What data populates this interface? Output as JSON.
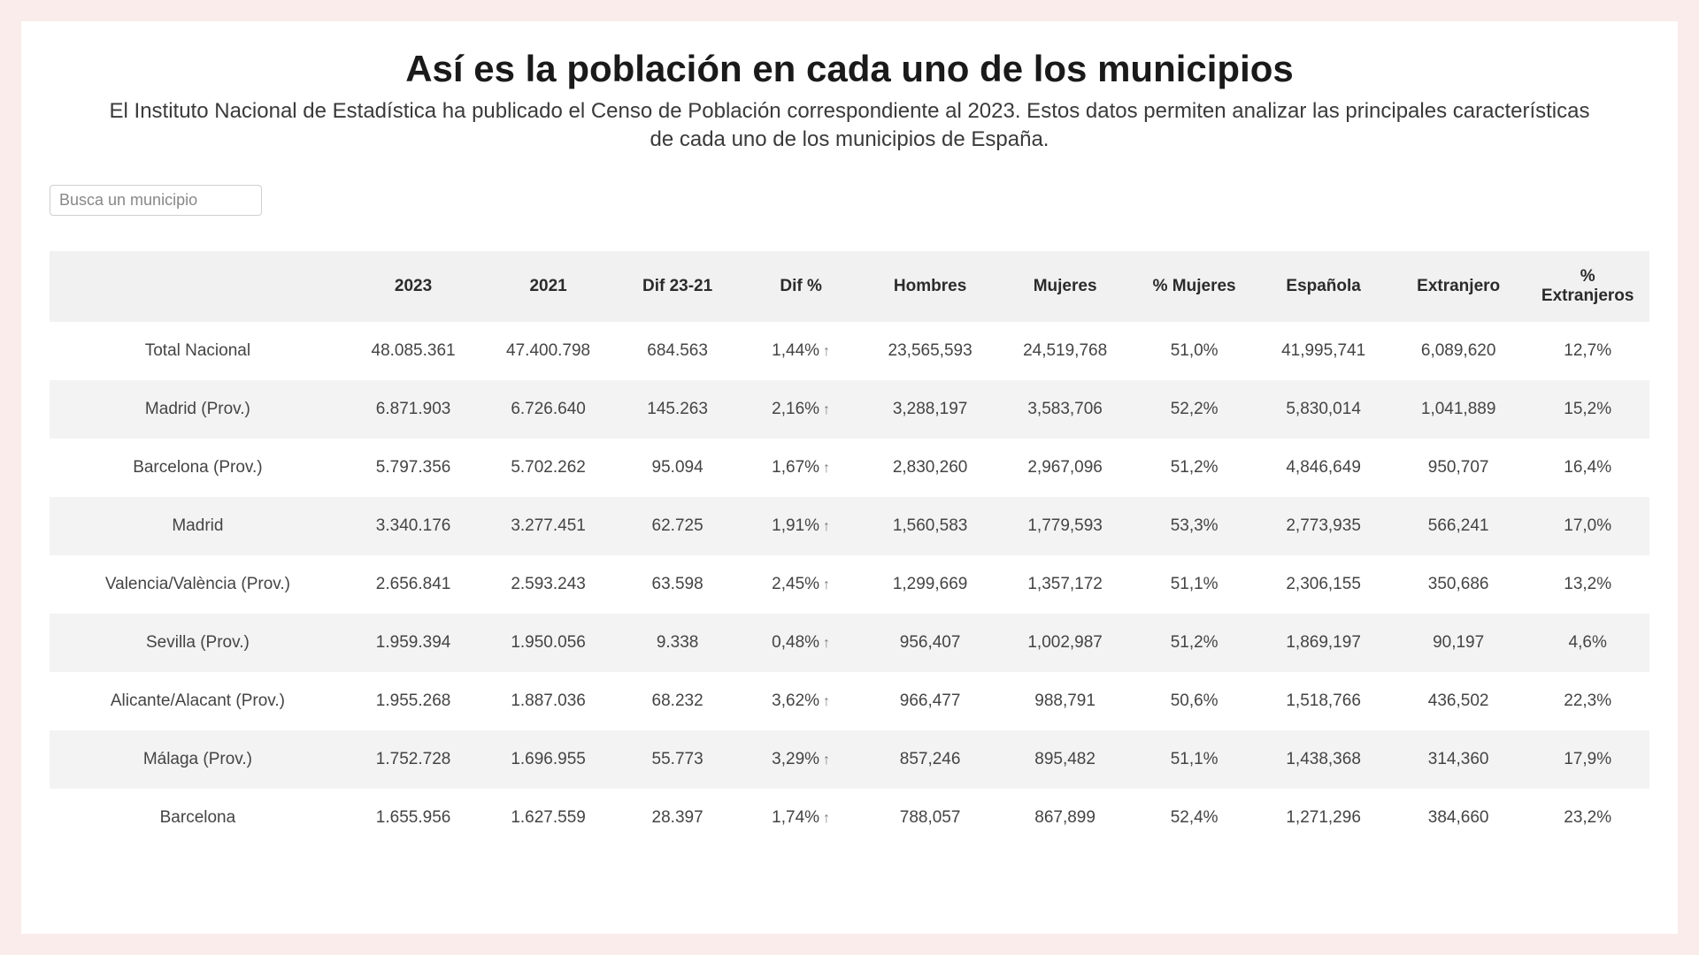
{
  "header": {
    "title": "Así es la población en cada uno de los municipios",
    "subtitle": "El Instituto Nacional de Estadística ha publicado el Censo de Población correspondiente al 2023. Estos datos permiten analizar las principales características de cada uno de los municipios de España."
  },
  "search": {
    "placeholder": "Busca un municipio"
  },
  "table": {
    "columns": [
      "",
      "2023",
      "2021",
      "Dif 23-21",
      "Dif %",
      "Hombres",
      "Mujeres",
      "% Mujeres",
      "Española",
      "Extranjero",
      "% Extranjeros"
    ],
    "rows": [
      {
        "name": "Total Nacional",
        "y2023": "48.085.361",
        "y2021": "47.400.798",
        "dif": "684.563",
        "difpct": "1,44%",
        "arrow": "↑",
        "hombres": "23,565,593",
        "mujeres": "24,519,768",
        "pctmuj": "51,0%",
        "esp": "41,995,741",
        "ext": "6,089,620",
        "pctext": "12,7%"
      },
      {
        "name": "Madrid (Prov.)",
        "y2023": "6.871.903",
        "y2021": "6.726.640",
        "dif": "145.263",
        "difpct": "2,16%",
        "arrow": "↑",
        "hombres": "3,288,197",
        "mujeres": "3,583,706",
        "pctmuj": "52,2%",
        "esp": "5,830,014",
        "ext": "1,041,889",
        "pctext": "15,2%"
      },
      {
        "name": "Barcelona (Prov.)",
        "y2023": "5.797.356",
        "y2021": "5.702.262",
        "dif": "95.094",
        "difpct": "1,67%",
        "arrow": "↑",
        "hombres": "2,830,260",
        "mujeres": "2,967,096",
        "pctmuj": "51,2%",
        "esp": "4,846,649",
        "ext": "950,707",
        "pctext": "16,4%"
      },
      {
        "name": "Madrid",
        "y2023": "3.340.176",
        "y2021": "3.277.451",
        "dif": "62.725",
        "difpct": "1,91%",
        "arrow": "↑",
        "hombres": "1,560,583",
        "mujeres": "1,779,593",
        "pctmuj": "53,3%",
        "esp": "2,773,935",
        "ext": "566,241",
        "pctext": "17,0%"
      },
      {
        "name": "Valencia/València (Prov.)",
        "y2023": "2.656.841",
        "y2021": "2.593.243",
        "dif": "63.598",
        "difpct": "2,45%",
        "arrow": "↑",
        "hombres": "1,299,669",
        "mujeres": "1,357,172",
        "pctmuj": "51,1%",
        "esp": "2,306,155",
        "ext": "350,686",
        "pctext": "13,2%"
      },
      {
        "name": "Sevilla (Prov.)",
        "y2023": "1.959.394",
        "y2021": "1.950.056",
        "dif": "9.338",
        "difpct": "0,48%",
        "arrow": "↑",
        "hombres": "956,407",
        "mujeres": "1,002,987",
        "pctmuj": "51,2%",
        "esp": "1,869,197",
        "ext": "90,197",
        "pctext": "4,6%"
      },
      {
        "name": "Alicante/Alacant (Prov.)",
        "y2023": "1.955.268",
        "y2021": "1.887.036",
        "dif": "68.232",
        "difpct": "3,62%",
        "arrow": "↑",
        "hombres": "966,477",
        "mujeres": "988,791",
        "pctmuj": "50,6%",
        "esp": "1,518,766",
        "ext": "436,502",
        "pctext": "22,3%"
      },
      {
        "name": "Málaga (Prov.)",
        "y2023": "1.752.728",
        "y2021": "1.696.955",
        "dif": "55.773",
        "difpct": "3,29%",
        "arrow": "↑",
        "hombres": "857,246",
        "mujeres": "895,482",
        "pctmuj": "51,1%",
        "esp": "1,438,368",
        "ext": "314,360",
        "pctext": "17,9%"
      },
      {
        "name": "Barcelona",
        "y2023": "1.655.956",
        "y2021": "1.627.559",
        "dif": "28.397",
        "difpct": "1,74%",
        "arrow": "↑",
        "hombres": "788,057",
        "mujeres": "867,899",
        "pctmuj": "52,4%",
        "esp": "1,271,296",
        "ext": "384,660",
        "pctext": "23,2%"
      }
    ]
  },
  "colors": {
    "page_bg": "#f9eceb",
    "card_bg": "#ffffff",
    "header_row_bg": "#f1f1f1",
    "stripe_bg": "#f4f3f3",
    "text": "#2a2a2a"
  }
}
